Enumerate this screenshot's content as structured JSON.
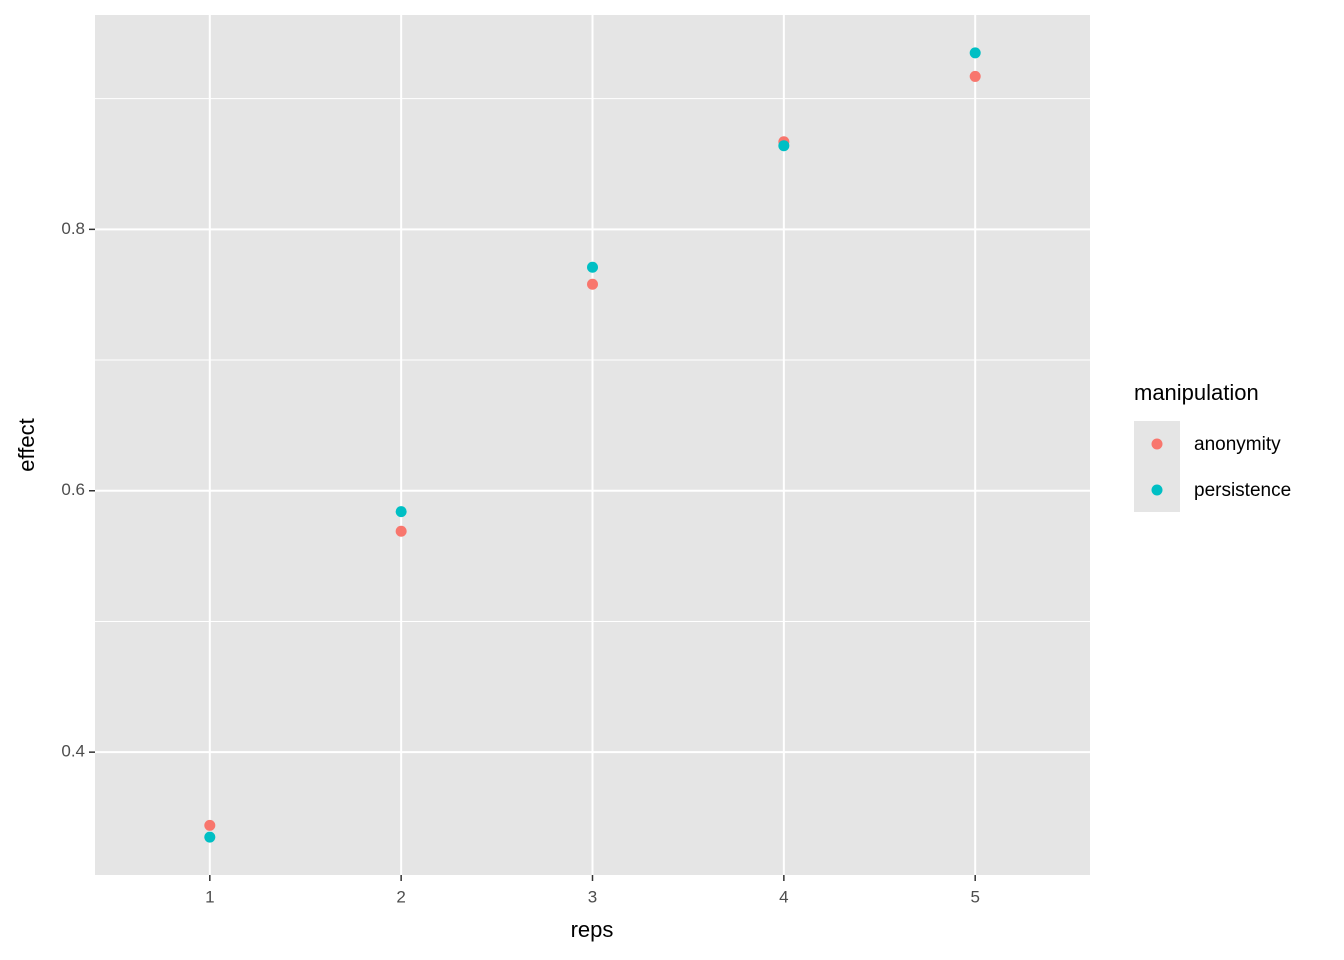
{
  "chart_data": {
    "type": "scatter",
    "x_label": "reps",
    "y_label": "effect",
    "legend_title": "manipulation",
    "xlim": [
      0.4,
      5.6
    ],
    "ylim": [
      0.306,
      0.964
    ],
    "xticks": [
      1,
      2,
      3,
      4,
      5
    ],
    "yticks": [
      0.4,
      0.6,
      0.8
    ],
    "grid": true,
    "legend": "right",
    "series": [
      {
        "name": "anonymity",
        "color": "#F8766D",
        "x": [
          1,
          2,
          3,
          4,
          5
        ],
        "values": [
          0.344,
          0.569,
          0.758,
          0.867,
          0.917
        ]
      },
      {
        "name": "persistence",
        "color": "#00BFC4",
        "x": [
          1,
          2,
          3,
          4,
          5
        ],
        "values": [
          0.335,
          0.584,
          0.771,
          0.864,
          0.935
        ]
      }
    ]
  }
}
